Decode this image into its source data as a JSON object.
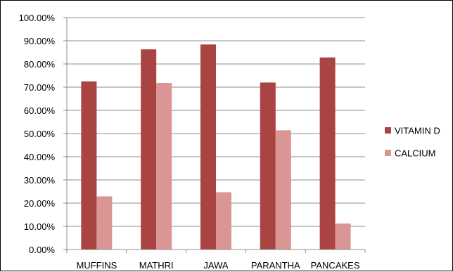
{
  "chart_data": {
    "type": "bar",
    "categories": [
      "MUFFINS",
      "MATHRI",
      "JAWA",
      "PARANTHA",
      "PANCAKES"
    ],
    "series": [
      {
        "name": "VITAMIN D",
        "values": [
          72.5,
          86.3,
          88.4,
          72.0,
          82.8
        ],
        "color": "#a94442"
      },
      {
        "name": "CALCIUM",
        "values": [
          22.9,
          71.8,
          24.7,
          51.4,
          11.2
        ],
        "color": "#d99694"
      }
    ],
    "y_ticks": [
      "0.00%",
      "10.00%",
      "20.00%",
      "30.00%",
      "40.00%",
      "50.00%",
      "60.00%",
      "70.00%",
      "80.00%",
      "90.00%",
      "100.00%"
    ],
    "ylim": [
      0,
      100
    ],
    "grid": true,
    "legend_position": "right"
  }
}
